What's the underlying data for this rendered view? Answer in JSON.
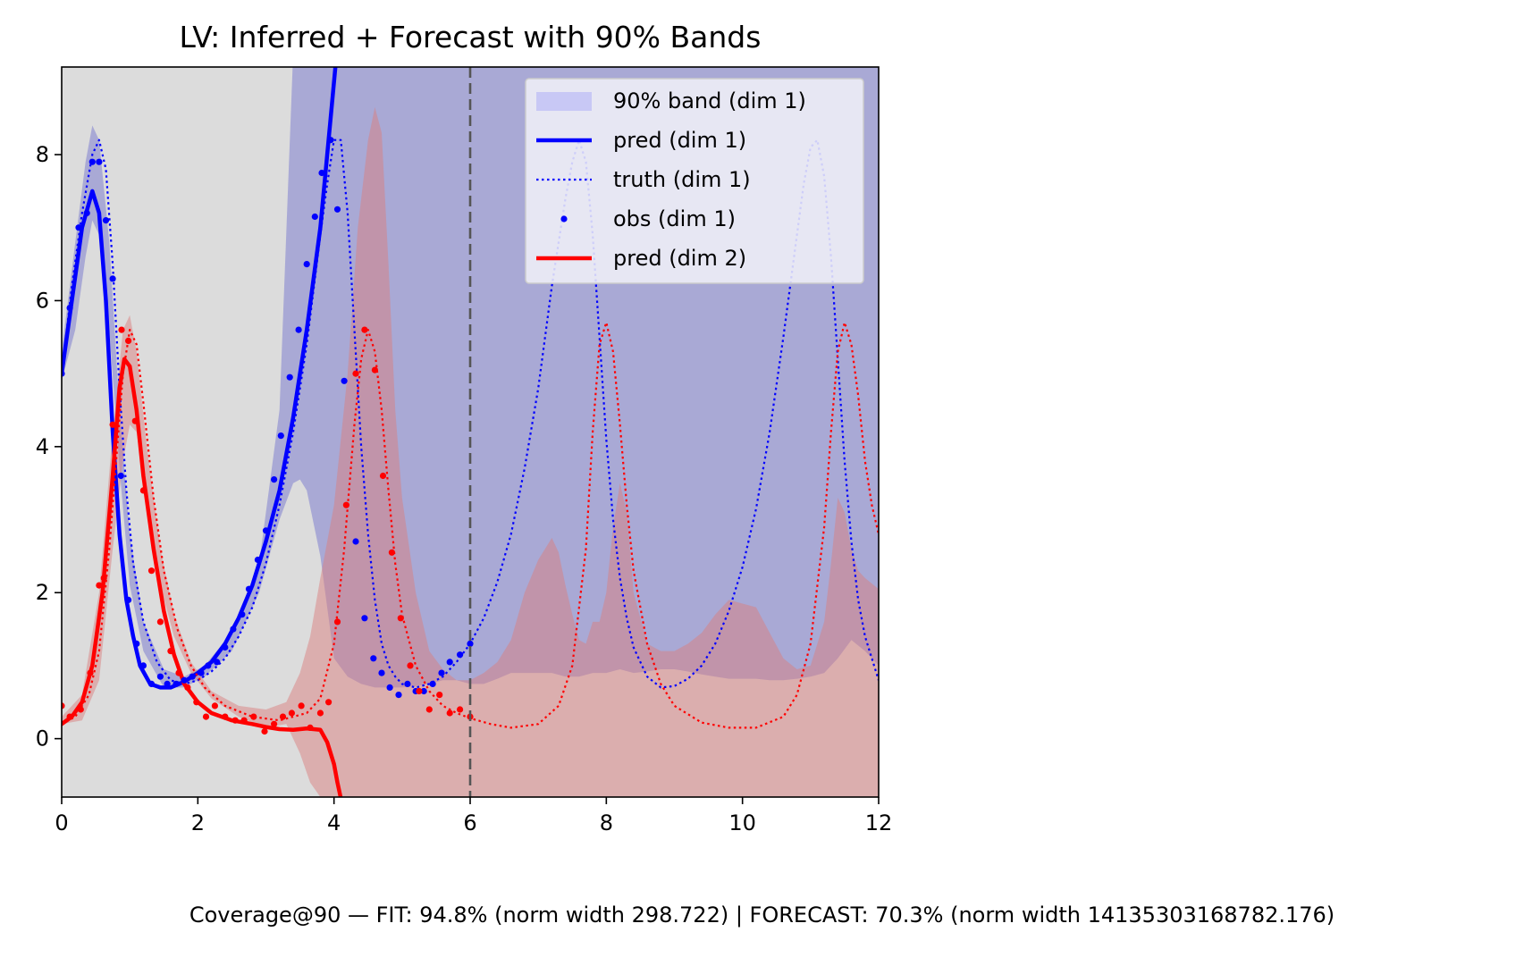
{
  "chart_data": {
    "type": "line",
    "title": "LV: Inferred + Forecast with 90% Bands",
    "xlim": [
      0,
      12
    ],
    "ylim": [
      -0.8,
      9.2
    ],
    "x_ticks": [
      0,
      2,
      4,
      6,
      8,
      10,
      12
    ],
    "y_ticks": [
      0,
      2,
      4,
      6,
      8
    ],
    "grid": false,
    "forecast_start": 6,
    "legend_position": "top-right",
    "colors": {
      "dim1": "#0000ff",
      "dim2": "#ff0000",
      "band1": "#7f7fd0",
      "band2": "#d98080",
      "band_background": "#dcdcdc",
      "divider": "#555555"
    },
    "legend": [
      {
        "label": "90% band (dim 1)",
        "kind": "patch",
        "color": "#c8c8f5"
      },
      {
        "label": "pred (dim 1)",
        "kind": "solid",
        "color": "#0000ff"
      },
      {
        "label": "truth (dim 1)",
        "kind": "dotted",
        "color": "#0000ff"
      },
      {
        "label": "obs (dim 1)",
        "kind": "marker",
        "color": "#0000ff"
      },
      {
        "label": "pred (dim 2)",
        "kind": "solid",
        "color": "#ff0000"
      }
    ],
    "series": [
      {
        "name": "pred (dim 1)",
        "style": "solid",
        "color": "#0000ff",
        "x": [
          0,
          0.15,
          0.3,
          0.45,
          0.55,
          0.65,
          0.75,
          0.85,
          0.95,
          1.05,
          1.15,
          1.3,
          1.45,
          1.6,
          1.8,
          2.0,
          2.2,
          2.4,
          2.6,
          2.8,
          3.0,
          3.2,
          3.4,
          3.6,
          3.8,
          3.95,
          4.05,
          4.15
        ],
        "y": [
          5.0,
          6.0,
          7.0,
          7.5,
          7.2,
          6.0,
          4.2,
          2.8,
          1.9,
          1.4,
          1.0,
          0.75,
          0.7,
          0.7,
          0.78,
          0.9,
          1.05,
          1.3,
          1.65,
          2.1,
          2.7,
          3.4,
          4.4,
          5.6,
          7.0,
          8.5,
          9.5,
          10.5
        ]
      },
      {
        "name": "truth (dim 1)",
        "style": "dotted",
        "color": "#0000ff",
        "x": [
          0,
          0.15,
          0.3,
          0.45,
          0.55,
          0.65,
          0.75,
          0.85,
          0.95,
          1.05,
          1.2,
          1.4,
          1.6,
          1.8,
          2.0,
          2.2,
          2.4,
          2.6,
          2.8,
          3.0,
          3.2,
          3.4,
          3.6,
          3.8,
          3.9,
          4.0,
          4.1,
          4.2,
          4.3,
          4.4,
          4.5,
          4.6,
          4.7,
          4.8,
          4.9,
          5.0,
          5.2,
          5.4,
          5.6,
          5.8,
          6.0,
          6.2,
          6.4,
          6.6,
          6.8,
          7.0,
          7.2,
          7.4,
          7.5,
          7.6,
          7.7,
          7.8,
          7.9,
          8.0,
          8.1,
          8.2,
          8.3,
          8.4,
          8.6,
          8.8,
          9.0,
          9.2,
          9.4,
          9.6,
          9.8,
          10.0,
          10.2,
          10.4,
          10.6,
          10.8,
          10.9,
          11.0,
          11.1,
          11.2,
          11.3,
          11.4,
          11.5,
          11.6,
          11.7,
          11.8,
          12.0
        ],
        "y": [
          5.0,
          6.2,
          7.2,
          8.0,
          8.2,
          7.8,
          6.5,
          4.8,
          3.4,
          2.4,
          1.6,
          1.05,
          0.8,
          0.75,
          0.8,
          0.92,
          1.1,
          1.4,
          1.8,
          2.4,
          3.2,
          4.2,
          5.4,
          6.9,
          7.6,
          8.2,
          8.2,
          7.2,
          5.6,
          4.0,
          2.8,
          1.9,
          1.3,
          1.0,
          0.85,
          0.75,
          0.7,
          0.75,
          0.85,
          1.05,
          1.3,
          1.65,
          2.15,
          2.8,
          3.7,
          4.8,
          6.2,
          7.4,
          7.9,
          8.2,
          7.9,
          6.9,
          5.5,
          4.1,
          3.0,
          2.2,
          1.65,
          1.25,
          0.85,
          0.7,
          0.72,
          0.82,
          1.0,
          1.3,
          1.75,
          2.35,
          3.15,
          4.2,
          5.5,
          6.9,
          7.6,
          8.1,
          8.2,
          7.7,
          6.6,
          5.2,
          3.8,
          2.7,
          1.9,
          1.4,
          0.8
        ]
      },
      {
        "name": "obs (dim 1)",
        "style": "marker",
        "color": "#0000ff",
        "x": [
          0.0,
          0.12,
          0.25,
          0.37,
          0.45,
          0.55,
          0.65,
          0.75,
          0.87,
          0.98,
          1.1,
          1.2,
          1.32,
          1.45,
          1.55,
          1.68,
          1.8,
          1.92,
          2.05,
          2.15,
          2.28,
          2.4,
          2.52,
          2.65,
          2.75,
          2.88,
          3.0,
          3.12,
          3.22,
          3.35,
          3.48,
          3.6,
          3.72,
          3.82,
          3.95,
          4.05,
          4.15,
          4.32,
          4.45,
          4.58,
          4.7,
          4.82,
          4.95,
          5.08,
          5.2,
          5.32,
          5.45,
          5.58,
          5.7,
          5.85,
          6.0
        ],
        "y": [
          5.0,
          5.9,
          7.0,
          7.2,
          7.9,
          7.9,
          7.1,
          6.3,
          3.6,
          1.9,
          1.3,
          1.0,
          0.75,
          0.85,
          0.75,
          0.75,
          0.8,
          0.85,
          0.9,
          1.0,
          1.05,
          1.25,
          1.5,
          1.7,
          2.05,
          2.45,
          2.85,
          3.55,
          4.15,
          4.95,
          5.6,
          6.5,
          7.15,
          7.75,
          8.2,
          7.25,
          4.9,
          2.7,
          1.65,
          1.1,
          0.9,
          0.7,
          0.6,
          0.75,
          0.65,
          0.65,
          0.75,
          0.9,
          1.05,
          1.15,
          1.3
        ]
      },
      {
        "name": "pred (dim 2)",
        "style": "solid",
        "color": "#ff0000",
        "x": [
          0,
          0.15,
          0.3,
          0.45,
          0.6,
          0.75,
          0.85,
          0.92,
          1.0,
          1.1,
          1.2,
          1.35,
          1.5,
          1.65,
          1.8,
          2.0,
          2.2,
          2.5,
          2.8,
          3.0,
          3.2,
          3.4,
          3.6,
          3.8,
          3.9,
          4.0,
          4.05,
          4.12
        ],
        "y": [
          0.2,
          0.3,
          0.5,
          1.0,
          2.0,
          3.6,
          4.8,
          5.2,
          5.1,
          4.5,
          3.6,
          2.6,
          1.75,
          1.15,
          0.75,
          0.5,
          0.35,
          0.25,
          0.2,
          0.16,
          0.13,
          0.12,
          0.14,
          0.12,
          -0.05,
          -0.35,
          -0.6,
          -0.9
        ]
      },
      {
        "name": "truth (dim 2)",
        "style": "dotted",
        "color": "#ff0000",
        "x": [
          0,
          0.2,
          0.4,
          0.55,
          0.7,
          0.8,
          0.9,
          1.0,
          1.1,
          1.2,
          1.35,
          1.5,
          1.7,
          1.9,
          2.1,
          2.4,
          2.8,
          3.2,
          3.6,
          3.8,
          4.0,
          4.15,
          4.3,
          4.4,
          4.5,
          4.6,
          4.7,
          4.8,
          4.9,
          5.0,
          5.2,
          5.4,
          5.6,
          5.8,
          6.0,
          6.3,
          6.6,
          7.0,
          7.3,
          7.5,
          7.7,
          7.8,
          7.9,
          8.0,
          8.1,
          8.2,
          8.3,
          8.4,
          8.6,
          8.8,
          9.0,
          9.4,
          9.8,
          10.2,
          10.6,
          10.8,
          11.0,
          11.2,
          11.3,
          11.4,
          11.5,
          11.6,
          11.7,
          11.8,
          11.9,
          12.0
        ],
        "y": [
          0.2,
          0.3,
          0.6,
          1.2,
          2.6,
          3.8,
          5.0,
          5.6,
          5.4,
          4.6,
          3.3,
          2.3,
          1.5,
          1.0,
          0.7,
          0.45,
          0.3,
          0.25,
          0.35,
          0.55,
          1.3,
          2.6,
          4.3,
          5.2,
          5.6,
          5.3,
          4.5,
          3.4,
          2.4,
          1.7,
          1.0,
          0.65,
          0.45,
          0.35,
          0.28,
          0.2,
          0.15,
          0.2,
          0.45,
          1.0,
          2.6,
          4.2,
          5.4,
          5.7,
          5.3,
          4.3,
          3.2,
          2.3,
          1.3,
          0.75,
          0.45,
          0.22,
          0.15,
          0.15,
          0.3,
          0.6,
          1.3,
          2.9,
          4.2,
          5.3,
          5.7,
          5.4,
          4.7,
          3.8,
          3.2,
          2.8
        ]
      },
      {
        "name": "obs (dim 2)",
        "style": "marker",
        "color": "#ff0000",
        "x": [
          0.0,
          0.12,
          0.28,
          0.42,
          0.55,
          0.62,
          0.75,
          0.88,
          0.98,
          1.08,
          1.2,
          1.32,
          1.45,
          1.6,
          1.72,
          1.85,
          1.98,
          2.12,
          2.25,
          2.4,
          2.55,
          2.68,
          2.82,
          2.98,
          3.12,
          3.25,
          3.38,
          3.52,
          3.65,
          3.8,
          3.92,
          4.05,
          4.18,
          4.32,
          4.45,
          4.6,
          4.72,
          4.85,
          4.98,
          5.12,
          5.25,
          5.4,
          5.55,
          5.7,
          5.85,
          6.0
        ],
        "y": [
          0.45,
          0.3,
          0.4,
          0.9,
          2.1,
          2.2,
          4.3,
          5.6,
          5.45,
          4.35,
          3.4,
          2.3,
          1.6,
          1.2,
          0.9,
          0.7,
          0.5,
          0.3,
          0.45,
          0.3,
          0.25,
          0.25,
          0.3,
          0.1,
          0.2,
          0.3,
          0.35,
          0.45,
          0.15,
          0.35,
          0.5,
          1.6,
          3.2,
          5.0,
          5.6,
          5.05,
          3.6,
          2.55,
          1.65,
          1.0,
          0.65,
          0.4,
          0.6,
          0.35,
          0.4,
          0.3
        ]
      }
    ],
    "bands": [
      {
        "name": "90% band (dim 1)",
        "color": "#7f7fd0",
        "x": [
          0,
          0.2,
          0.35,
          0.45,
          0.55,
          0.7,
          0.85,
          1.0,
          1.2,
          1.5,
          1.8,
          2.1,
          2.5,
          2.9,
          3.2,
          3.4,
          3.5,
          3.6,
          3.8,
          4.0,
          4.2,
          4.4,
          4.6,
          4.8,
          5.0,
          5.2,
          5.4,
          5.6,
          5.8,
          6.0,
          6.2,
          6.4,
          6.6,
          6.8,
          7.0,
          7.2,
          7.4,
          7.6,
          7.8,
          8.0,
          8.2,
          8.4,
          8.6,
          8.8,
          9.0,
          9.2,
          9.4,
          9.6,
          9.8,
          10.0,
          10.2,
          10.4,
          10.6,
          10.8,
          11.0,
          11.2,
          11.4,
          11.6,
          11.8,
          12.0
        ],
        "upper": [
          5.3,
          6.8,
          7.9,
          8.4,
          8.2,
          6.8,
          4.5,
          2.8,
          1.6,
          0.95,
          0.85,
          1.0,
          1.45,
          2.4,
          4.5,
          9.4,
          9.4,
          9.4,
          9.4,
          9.4,
          9.4,
          9.4,
          9.4,
          9.4,
          9.4,
          9.4,
          9.4,
          9.4,
          9.4,
          9.4,
          9.4,
          9.4,
          9.4,
          9.4,
          9.4,
          9.4,
          9.4,
          9.4,
          9.4,
          9.4,
          9.4,
          9.4,
          9.4,
          9.4,
          9.4,
          9.4,
          9.4,
          9.4,
          9.4,
          9.4,
          9.4,
          9.4,
          9.4,
          9.4,
          9.4,
          9.4,
          9.4,
          9.4,
          9.4,
          9.4
        ],
        "lower": [
          4.9,
          5.6,
          6.6,
          7.1,
          6.9,
          5.6,
          3.7,
          2.1,
          1.2,
          0.7,
          0.7,
          0.85,
          1.2,
          2.0,
          3.0,
          3.5,
          3.55,
          3.4,
          2.5,
          1.1,
          0.85,
          0.75,
          0.7,
          0.7,
          0.7,
          0.72,
          0.75,
          0.8,
          0.8,
          0.75,
          0.75,
          0.82,
          0.9,
          0.9,
          0.9,
          0.9,
          0.85,
          0.85,
          0.9,
          0.9,
          0.95,
          0.9,
          0.92,
          0.95,
          0.95,
          0.92,
          0.88,
          0.85,
          0.82,
          0.82,
          0.82,
          0.8,
          0.8,
          0.82,
          0.85,
          0.9,
          1.1,
          1.35,
          1.2,
          1.0
        ]
      },
      {
        "name": "90% band (dim 2)",
        "color": "#d98080",
        "x": [
          0,
          0.3,
          0.55,
          0.75,
          0.9,
          1.0,
          1.1,
          1.25,
          1.45,
          1.65,
          1.9,
          2.2,
          2.6,
          3.0,
          3.3,
          3.5,
          3.65,
          3.8,
          4.0,
          4.2,
          4.35,
          4.5,
          4.6,
          4.7,
          4.8,
          4.9,
          5.0,
          5.2,
          5.4,
          5.6,
          5.8,
          6.0,
          6.2,
          6.4,
          6.6,
          6.8,
          7.0,
          7.1,
          7.2,
          7.3,
          7.4,
          7.5,
          7.6,
          7.7,
          7.8,
          7.9,
          8.0,
          8.1,
          8.2,
          8.3,
          8.4,
          8.6,
          8.8,
          9.0,
          9.2,
          9.4,
          9.6,
          9.8,
          10.0,
          10.2,
          10.4,
          10.6,
          10.8,
          11.0,
          11.2,
          11.3,
          11.4,
          11.5,
          11.6,
          11.7,
          11.8,
          12.0
        ],
        "upper": [
          0.3,
          0.6,
          2.0,
          4.2,
          5.6,
          5.8,
          5.3,
          4.0,
          2.6,
          1.7,
          1.05,
          0.65,
          0.45,
          0.4,
          0.5,
          0.9,
          1.4,
          2.2,
          3.2,
          5.0,
          7.0,
          8.2,
          8.65,
          8.3,
          6.5,
          4.5,
          3.3,
          2.0,
          1.2,
          0.95,
          0.8,
          0.8,
          0.9,
          1.05,
          1.35,
          2.0,
          2.45,
          2.6,
          2.75,
          2.55,
          2.1,
          1.7,
          1.35,
          1.3,
          1.6,
          1.6,
          2.0,
          2.9,
          3.5,
          3.1,
          2.0,
          1.3,
          1.2,
          1.2,
          1.3,
          1.45,
          1.7,
          1.9,
          1.85,
          1.8,
          1.45,
          1.1,
          0.95,
          1.0,
          1.6,
          2.4,
          3.3,
          3.1,
          2.6,
          2.3,
          2.2,
          2.05
        ],
        "lower": [
          0.2,
          0.25,
          0.8,
          2.6,
          3.8,
          4.3,
          4.2,
          3.2,
          2.1,
          1.4,
          0.9,
          0.55,
          0.3,
          0.15,
          0.2,
          -0.2,
          -0.6,
          -0.8,
          -0.8,
          -0.8,
          -0.8,
          -0.8,
          -0.8,
          -0.8,
          -0.8,
          -0.8,
          -0.8,
          -0.8,
          -0.8,
          -0.8,
          -0.8,
          -0.8,
          -0.8,
          -0.8,
          -0.8,
          -0.8,
          -0.8,
          -0.8,
          -0.8,
          -0.8,
          -0.8,
          -0.8,
          -0.8,
          -0.8,
          -0.8,
          -0.8,
          -0.8,
          -0.8,
          -0.8,
          -0.8,
          -0.8,
          -0.8,
          -0.8,
          -0.8,
          -0.8,
          -0.8,
          -0.8,
          -0.8,
          -0.8,
          -0.8,
          -0.8,
          -0.8,
          -0.8,
          -0.8,
          -0.8,
          -0.8,
          -0.8,
          -0.8,
          -0.8,
          -0.8,
          -0.8,
          -0.8
        ]
      }
    ],
    "ground_band": {
      "color": "#dcdcdc",
      "x": [
        0,
        0.5,
        1.0,
        1.5,
        2.0,
        2.5,
        3.0,
        3.2,
        3.35,
        3.5,
        3.6,
        3.7,
        3.8,
        3.9,
        4.0,
        4.2,
        4.5,
        5.0,
        5.5,
        6.0,
        6.5,
        7.0,
        7.5,
        8.0,
        8.5,
        9.0,
        9.5,
        10.0,
        10.5,
        11.0,
        11.5,
        12.0
      ],
      "upper": [
        9.4,
        9.4,
        9.4,
        9.4,
        9.4,
        9.4,
        9.4,
        9.4,
        9.4,
        9.4,
        9.4,
        9.4,
        9.4,
        9.4,
        9.4,
        9.4,
        9.4,
        9.4,
        9.4,
        9.4,
        9.4,
        9.4,
        9.4,
        9.4,
        9.4,
        9.4,
        9.4,
        9.4,
        9.4,
        9.4,
        9.4,
        9.4
      ],
      "lower": [
        -0.8,
        -0.8,
        -0.8,
        -0.8,
        -0.8,
        -0.8,
        -0.8,
        -0.8,
        -0.8,
        -0.8,
        -0.8,
        -0.8,
        -0.8,
        -0.8,
        -0.8,
        -0.8,
        -0.8,
        -0.8,
        -0.8,
        -0.8,
        -0.8,
        -0.8,
        -0.8,
        -0.8,
        -0.8,
        -0.8,
        -0.8,
        -0.8,
        -0.8,
        -0.8,
        -0.8,
        -0.8
      ]
    }
  },
  "caption": "Coverage@90 — FIT: 94.8% (norm width 298.722) | FORECAST: 70.3% (norm width 14135303168782.176)"
}
